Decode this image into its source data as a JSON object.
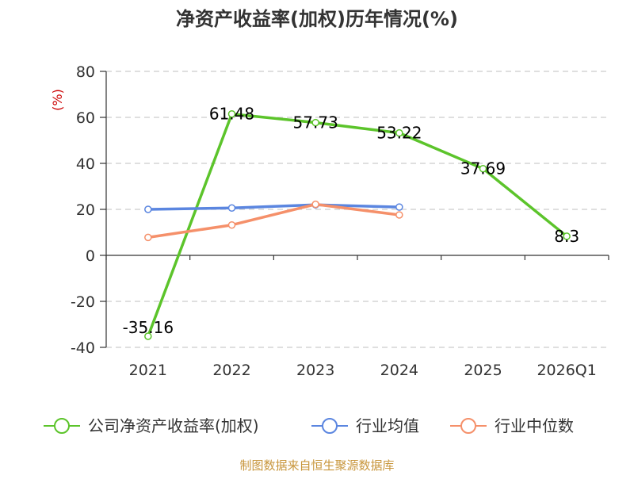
{
  "chart_data": {
    "type": "line",
    "title": "净资产收益率(加权)历年情况(%)",
    "ylabel": "(%)",
    "categories": [
      "2021",
      "2022",
      "2023",
      "2024",
      "2025",
      "2026Q1"
    ],
    "ylim": [
      -40,
      80
    ],
    "yticks": [
      80,
      60,
      40,
      20,
      0,
      -20,
      -40
    ],
    "grid": true,
    "legend_position": "bottom",
    "series": [
      {
        "name": "公司净资产收益率(加权)",
        "color": "#5cc42b",
        "values": [
          -35.16,
          61.48,
          57.73,
          53.22,
          37.69,
          8.3
        ],
        "data_labels": [
          "-35.16",
          "61.48",
          "57.73",
          "53.22",
          "37.69",
          "8.3"
        ]
      },
      {
        "name": "行业均值",
        "color": "#5b86e0",
        "values": [
          20.0,
          20.6,
          22.0,
          21.0,
          null,
          null
        ]
      },
      {
        "name": "行业中位数",
        "color": "#f5906a",
        "values": [
          7.8,
          13.2,
          22.2,
          17.6,
          null,
          null
        ]
      }
    ],
    "source": "制图数据来自恒生聚源数据库"
  }
}
